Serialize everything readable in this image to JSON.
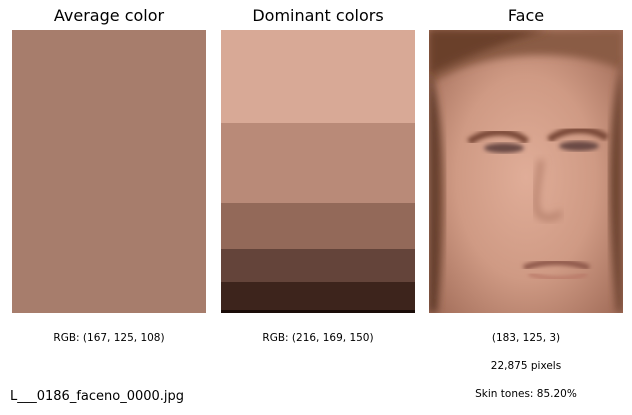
{
  "panels": {
    "average": {
      "title": "Average color",
      "color": "#a77d6c",
      "caption": "RGB: (167, 125, 108)"
    },
    "dominant": {
      "title": "Dominant colors",
      "caption": "RGB: (216, 169, 150)",
      "swatches": [
        {
          "color": "#d8a996",
          "proportion": 0.33
        },
        {
          "color": "#b98a78",
          "proportion": 0.28
        },
        {
          "color": "#936959",
          "proportion": 0.165
        },
        {
          "color": "#64443a",
          "proportion": 0.115
        },
        {
          "color": "#3d241c",
          "proportion": 0.1
        },
        {
          "color": "#1a0c08",
          "proportion": 0.01
        }
      ]
    },
    "face": {
      "title": "Face",
      "image": "face-crop",
      "caption_rgb": "(183, 125, 3)",
      "caption_pixels": "22,875 pixels",
      "caption_skin": "Skin tones: 85.20%"
    }
  },
  "filename": "L___0186_faceno_0000.jpg"
}
